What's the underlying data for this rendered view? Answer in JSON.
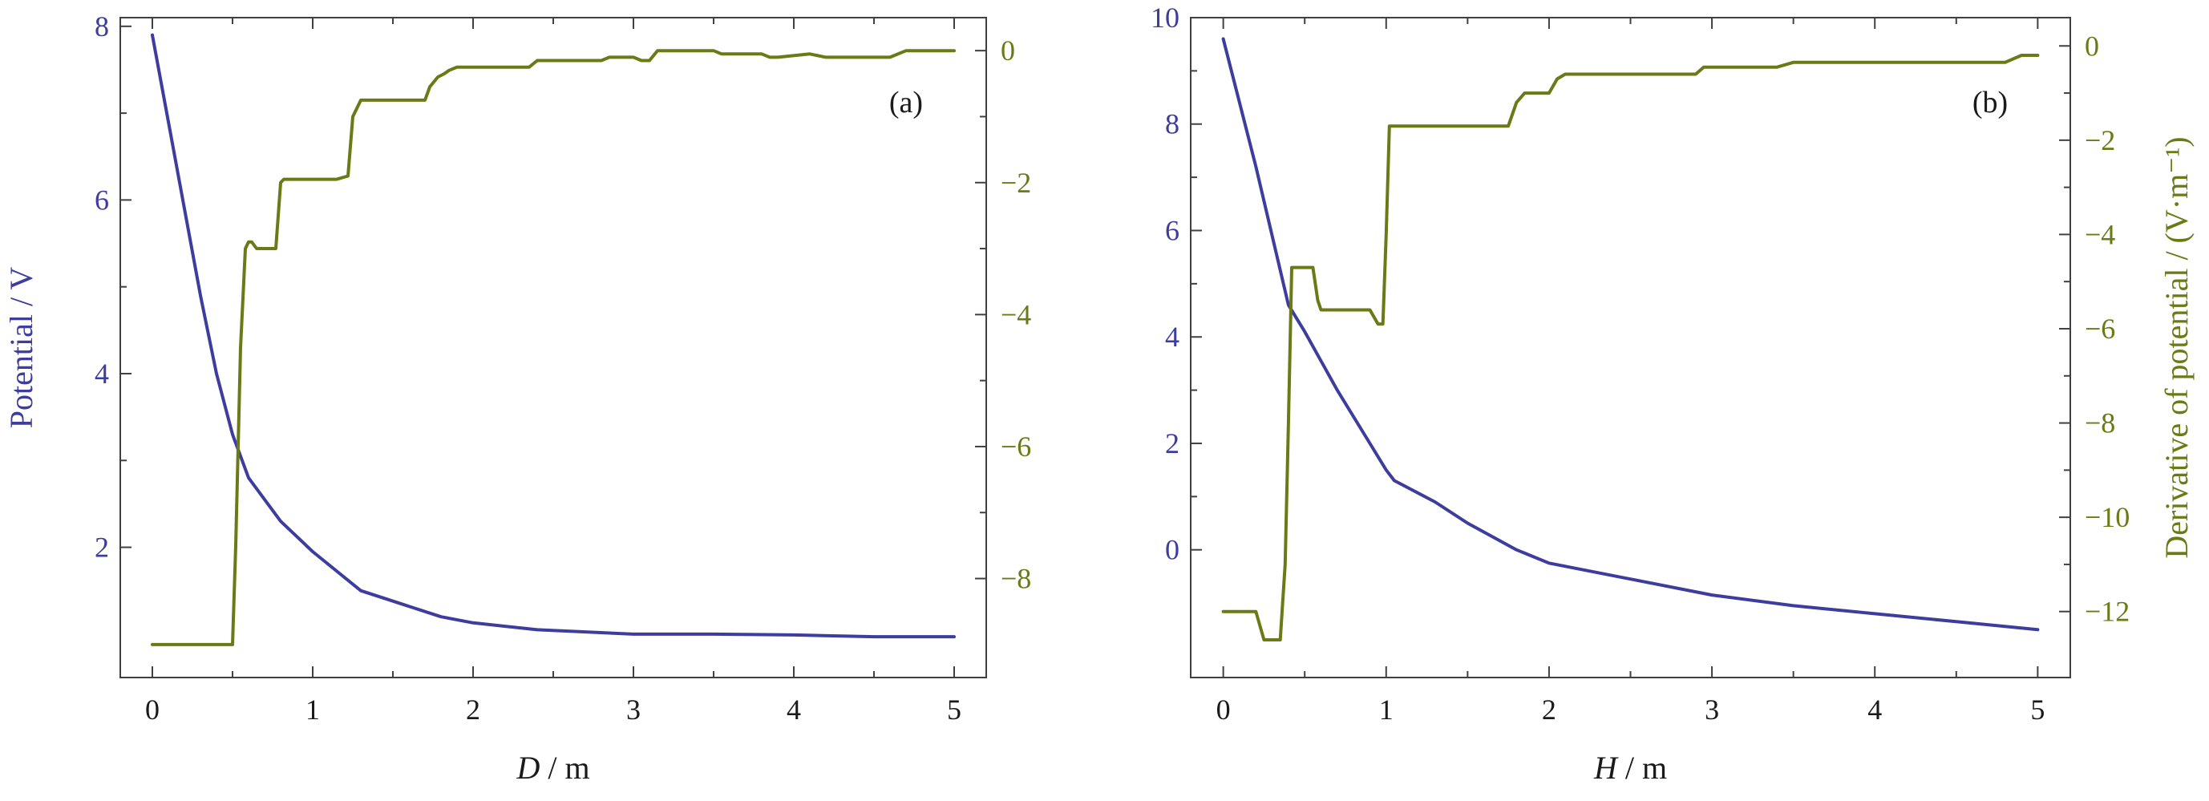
{
  "colors": {
    "potential": "#3d3d9e",
    "derivative": "#6b7a16",
    "axis": "#404040",
    "text": "#1a1a1a"
  },
  "chart_data": [
    {
      "type": "line",
      "panel_label": "(a)",
      "xlabel_var": "D",
      "xlabel_unit": " / m",
      "ylabel_left": "Potential / V",
      "ylabel_right": "",
      "xlim": [
        -0.2,
        5.2
      ],
      "ylim_left": [
        0.5,
        8.1
      ],
      "ylim_right": [
        -9.5,
        0.5
      ],
      "xticks": [
        0,
        1,
        2,
        3,
        4,
        5
      ],
      "xtick_labels": [
        "0",
        "1",
        "2",
        "3",
        "4",
        "5"
      ],
      "yticks_left": [
        2,
        4,
        6,
        8
      ],
      "ytick_labels_left": [
        "2",
        "4",
        "6",
        "8"
      ],
      "yticks_right": [
        -8,
        -6,
        -4,
        -2,
        0
      ],
      "ytick_labels_right": [
        "−8",
        "−6",
        "−4",
        "−2",
        "0"
      ],
      "series": [
        {
          "axis": "left",
          "color": "#3d3d9e",
          "x": [
            0,
            0.1,
            0.2,
            0.3,
            0.4,
            0.5,
            0.6,
            0.8,
            1.0,
            1.3,
            1.5,
            1.8,
            2.0,
            2.4,
            3.0,
            3.5,
            4.0,
            4.5,
            5.0
          ],
          "y": [
            7.9,
            6.9,
            5.9,
            4.9,
            4.0,
            3.3,
            2.8,
            2.3,
            1.95,
            1.5,
            1.38,
            1.2,
            1.13,
            1.05,
            1.0,
            1.0,
            0.99,
            0.97,
            0.97
          ]
        },
        {
          "axis": "right",
          "color": "#6b7a16",
          "x": [
            0,
            0.5,
            0.52,
            0.55,
            0.58,
            0.6,
            0.62,
            0.65,
            0.68,
            0.72,
            0.77,
            0.8,
            0.82,
            0.85,
            1.0,
            1.15,
            1.22,
            1.25,
            1.3,
            1.45,
            1.65,
            1.7,
            1.73,
            1.78,
            1.82,
            1.85,
            1.9,
            2.0,
            2.35,
            2.4,
            2.8,
            2.85,
            2.9,
            3.0,
            3.05,
            3.1,
            3.15,
            3.25,
            3.5,
            3.55,
            3.6,
            3.8,
            3.85,
            3.9,
            4.1,
            4.2,
            4.6,
            4.7,
            5.0
          ],
          "y": [
            -9.0,
            -9.0,
            -7.5,
            -4.5,
            -3.0,
            -2.9,
            -2.9,
            -3.0,
            -3.0,
            -3.0,
            -3.0,
            -2.0,
            -1.95,
            -1.95,
            -1.95,
            -1.95,
            -1.9,
            -1.0,
            -0.75,
            -0.75,
            -0.75,
            -0.75,
            -0.55,
            -0.4,
            -0.35,
            -0.3,
            -0.25,
            -0.25,
            -0.25,
            -0.15,
            -0.15,
            -0.1,
            -0.1,
            -0.1,
            -0.15,
            -0.15,
            0.0,
            0.0,
            0.0,
            -0.05,
            -0.05,
            -0.05,
            -0.1,
            -0.1,
            -0.05,
            -0.1,
            -0.1,
            0.0,
            0.0
          ]
        }
      ]
    },
    {
      "type": "line",
      "panel_label": "(b)",
      "xlabel_var": "H",
      "xlabel_unit": " / m",
      "ylabel_left": "",
      "ylabel_right": "Derivative of potential / (V·m⁻¹)",
      "xlim": [
        -0.2,
        5.2
      ],
      "ylim_left": [
        -2.4,
        10.0
      ],
      "ylim_right": [
        -13.4,
        0.6
      ],
      "xticks": [
        0,
        1,
        2,
        3,
        4,
        5
      ],
      "xtick_labels": [
        "0",
        "1",
        "2",
        "3",
        "4",
        "5"
      ],
      "yticks_left": [
        0,
        2,
        4,
        6,
        8,
        10
      ],
      "ytick_labels_left": [
        "0",
        "2",
        "4",
        "6",
        "8",
        "10"
      ],
      "yticks_right": [
        -12,
        -10,
        -8,
        -6,
        -4,
        -2,
        0
      ],
      "ytick_labels_right": [
        "−12",
        "−10",
        "−8",
        "−6",
        "−4",
        "−2",
        "0"
      ],
      "series": [
        {
          "axis": "left",
          "color": "#3d3d9e",
          "x": [
            0,
            0.2,
            0.4,
            0.5,
            0.7,
            0.9,
            1.0,
            1.05,
            1.3,
            1.5,
            1.8,
            2.0,
            2.5,
            3.0,
            3.5,
            4.0,
            4.5,
            5.0
          ],
          "y": [
            9.6,
            7.2,
            4.6,
            4.1,
            3.0,
            2.0,
            1.5,
            1.3,
            0.9,
            0.5,
            0.0,
            -0.25,
            -0.55,
            -0.85,
            -1.05,
            -1.2,
            -1.35,
            -1.5
          ]
        },
        {
          "axis": "right",
          "color": "#6b7a16",
          "x": [
            0,
            0.2,
            0.25,
            0.3,
            0.35,
            0.38,
            0.4,
            0.42,
            0.45,
            0.55,
            0.58,
            0.6,
            0.65,
            0.7,
            0.9,
            0.95,
            0.98,
            1.0,
            1.02,
            1.05,
            1.5,
            1.75,
            1.8,
            1.85,
            2.0,
            2.05,
            2.1,
            2.5,
            2.9,
            2.95,
            3.0,
            3.4,
            3.5,
            4.0,
            4.5,
            4.8,
            4.9,
            5.0
          ],
          "y": [
            -12.0,
            -12.0,
            -12.6,
            -12.6,
            -12.6,
            -11.0,
            -8.0,
            -4.7,
            -4.7,
            -4.7,
            -5.4,
            -5.6,
            -5.6,
            -5.6,
            -5.6,
            -5.9,
            -5.9,
            -4.0,
            -1.7,
            -1.7,
            -1.7,
            -1.7,
            -1.2,
            -1.0,
            -1.0,
            -0.7,
            -0.6,
            -0.6,
            -0.6,
            -0.45,
            -0.45,
            -0.45,
            -0.35,
            -0.35,
            -0.35,
            -0.35,
            -0.2,
            -0.2
          ]
        }
      ]
    }
  ]
}
